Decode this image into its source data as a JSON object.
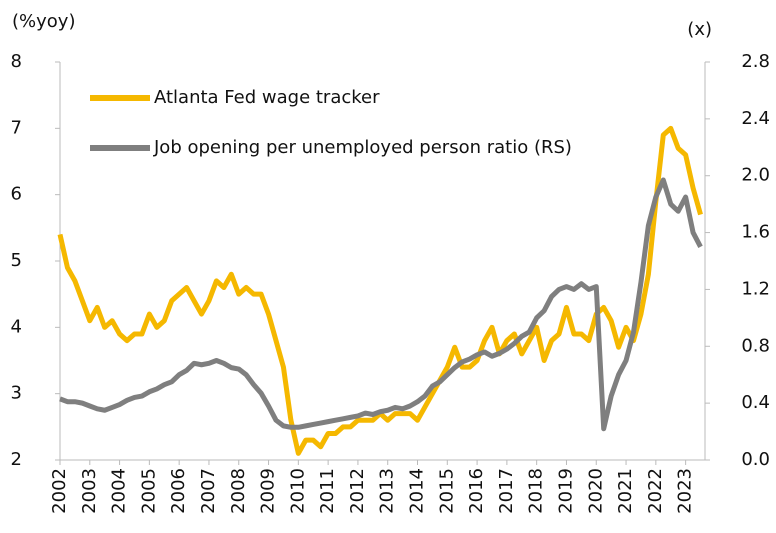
{
  "chart_data": {
    "type": "line",
    "y_label": "(%yoy)",
    "y2_label": "(x)",
    "x": [
      2002,
      2002.25,
      2002.5,
      2002.75,
      2003,
      2003.25,
      2003.5,
      2003.75,
      2004,
      2004.25,
      2004.5,
      2004.75,
      2005,
      2005.25,
      2005.5,
      2005.75,
      2006,
      2006.25,
      2006.5,
      2006.75,
      2007,
      2007.25,
      2007.5,
      2007.75,
      2008,
      2008.25,
      2008.5,
      2008.75,
      2009,
      2009.25,
      2009.5,
      2009.75,
      2010,
      2010.25,
      2010.5,
      2010.75,
      2011,
      2011.25,
      2011.5,
      2011.75,
      2012,
      2012.25,
      2012.5,
      2012.75,
      2013,
      2013.25,
      2013.5,
      2013.75,
      2014,
      2014.25,
      2014.5,
      2014.75,
      2015,
      2015.25,
      2015.5,
      2015.75,
      2016,
      2016.25,
      2016.5,
      2016.75,
      2017,
      2017.25,
      2017.5,
      2017.75,
      2018,
      2018.25,
      2018.5,
      2018.75,
      2019,
      2019.25,
      2019.5,
      2019.75,
      2020,
      2020.25,
      2020.5,
      2020.75,
      2021,
      2021.25,
      2021.5,
      2021.75,
      2022,
      2022.25,
      2022.5,
      2022.75,
      2023,
      2023.25,
      2023.5
    ],
    "series": [
      {
        "name": "Atlanta Fed wage tracker",
        "color": "#f5b800",
        "values": [
          5.4,
          4.9,
          4.7,
          4.4,
          4.1,
          4.3,
          4.0,
          4.1,
          3.9,
          3.8,
          3.9,
          3.9,
          4.2,
          4.0,
          4.1,
          4.4,
          4.5,
          4.6,
          4.4,
          4.2,
          4.4,
          4.7,
          4.6,
          4.8,
          4.5,
          4.6,
          4.5,
          4.5,
          4.2,
          3.8,
          3.4,
          2.6,
          2.1,
          2.3,
          2.3,
          2.2,
          2.4,
          2.4,
          2.5,
          2.5,
          2.6,
          2.6,
          2.6,
          2.7,
          2.6,
          2.7,
          2.7,
          2.7,
          2.6,
          2.8,
          3.0,
          3.2,
          3.4,
          3.7,
          3.4,
          3.4,
          3.5,
          3.8,
          4.0,
          3.6,
          3.8,
          3.9,
          3.6,
          3.8,
          4.0,
          3.5,
          3.8,
          3.9,
          4.3,
          3.9,
          3.9,
          3.8,
          4.2,
          4.3,
          4.1,
          3.7,
          4.0,
          3.8,
          4.2,
          4.8,
          5.9,
          6.9,
          7.0,
          6.7,
          6.6,
          6.1,
          5.7
        ]
      },
      {
        "name": "Job opening per unemployed person ratio (RS)",
        "color": "#7f7f7f",
        "axis": "y2",
        "values": [
          0.43,
          0.41,
          0.41,
          0.4,
          0.38,
          0.36,
          0.35,
          0.37,
          0.39,
          0.42,
          0.44,
          0.45,
          0.48,
          0.5,
          0.53,
          0.55,
          0.6,
          0.63,
          0.68,
          0.67,
          0.68,
          0.7,
          0.68,
          0.65,
          0.64,
          0.6,
          0.53,
          0.47,
          0.38,
          0.28,
          0.24,
          0.23,
          0.23,
          0.24,
          0.25,
          0.26,
          0.27,
          0.28,
          0.29,
          0.3,
          0.31,
          0.33,
          0.32,
          0.34,
          0.35,
          0.37,
          0.36,
          0.38,
          0.41,
          0.45,
          0.52,
          0.55,
          0.6,
          0.65,
          0.69,
          0.71,
          0.74,
          0.76,
          0.73,
          0.75,
          0.78,
          0.82,
          0.87,
          0.9,
          1.0,
          1.05,
          1.15,
          1.2,
          1.22,
          1.2,
          1.24,
          1.2,
          1.22,
          0.22,
          0.45,
          0.6,
          0.7,
          0.9,
          1.25,
          1.65,
          1.85,
          1.97,
          1.8,
          1.75,
          1.85,
          1.6,
          1.5
        ]
      }
    ],
    "xlim": [
      2002,
      2023.65
    ],
    "xticks": [
      2002,
      2003,
      2004,
      2005,
      2006,
      2007,
      2008,
      2009,
      2010,
      2011,
      2012,
      2013,
      2014,
      2015,
      2016,
      2017,
      2018,
      2019,
      2020,
      2021,
      2022,
      2023
    ],
    "ylim": [
      2,
      8
    ],
    "yticks": [
      2,
      3,
      4,
      5,
      6,
      7,
      8
    ],
    "y2lim": [
      0,
      2.8
    ],
    "y2ticks": [
      {
        "value": 0,
        "label": "0.0"
      },
      0.4,
      0.8,
      1.2,
      1.6,
      {
        "value": 2,
        "label": "2.0"
      },
      2.4,
      2.8
    ],
    "legend": "upper left"
  }
}
